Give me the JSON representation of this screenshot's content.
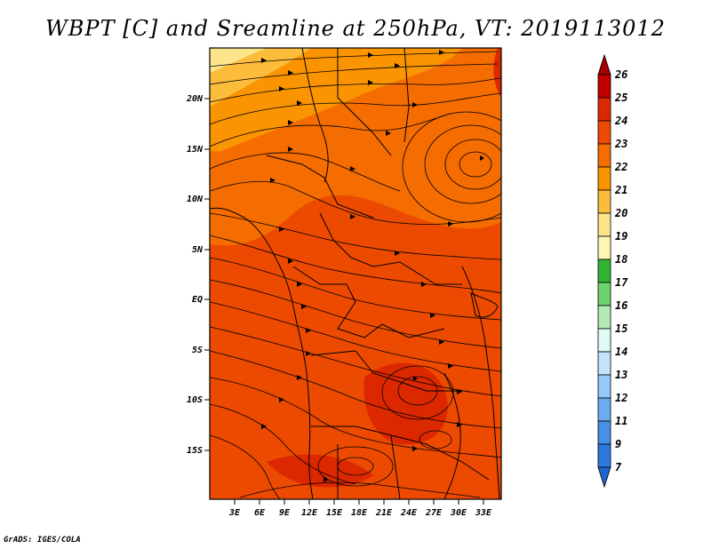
{
  "title": "WBPT [C] and Sreamline at 250hPa, VT: 2019113012",
  "credit": "GrADS: IGES/COLA",
  "map": {
    "lat_labels": [
      "20N",
      "15N",
      "10N",
      "5N",
      "EQ",
      "5S",
      "10S",
      "15S"
    ],
    "lon_labels": [
      "3E",
      "6E",
      "9E",
      "12E",
      "15E",
      "18E",
      "21E",
      "24E",
      "27E",
      "30E",
      "33E"
    ]
  },
  "colorbar": {
    "labels": [
      "26",
      "25",
      "24",
      "23",
      "22",
      "21",
      "20",
      "19",
      "18",
      "17",
      "16",
      "15",
      "14",
      "13",
      "12",
      "11",
      "9",
      "7"
    ],
    "colors": [
      "#a50000",
      "#c00000",
      "#dc2800",
      "#ec4a00",
      "#f56c00",
      "#fa9400",
      "#fcbc3c",
      "#fde58c",
      "#fff5b4",
      "#32b432",
      "#6ed26e",
      "#b4eab4",
      "#e1faf5",
      "#c4e2fa",
      "#96c8fa",
      "#6eaaf0",
      "#4690e6",
      "#2c78de",
      "#1e64d2"
    ]
  }
}
